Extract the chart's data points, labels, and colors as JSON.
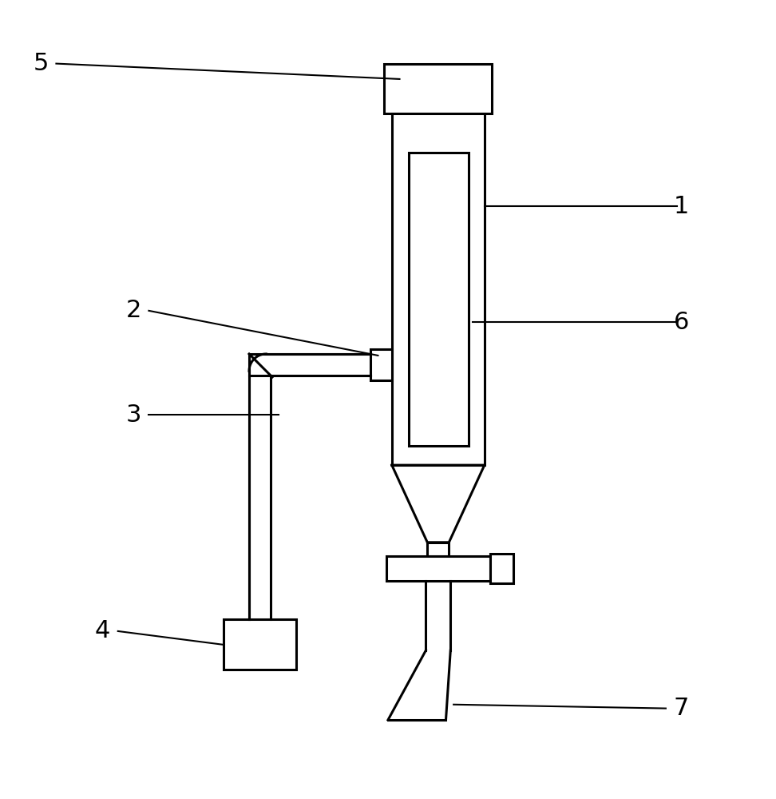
{
  "bg_color": "#ffffff",
  "line_color": "#000000",
  "line_width": 2.2,
  "label_fontsize": 22,
  "figsize": [
    9.72,
    10.0
  ],
  "dpi": 100
}
